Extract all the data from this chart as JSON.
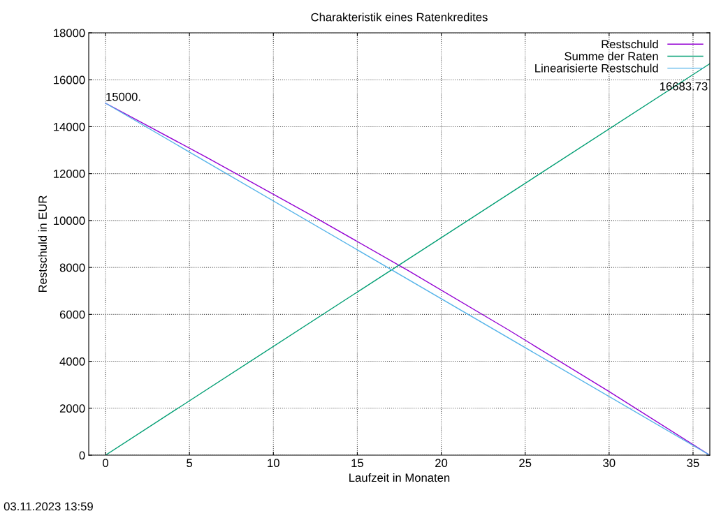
{
  "chart_data": {
    "type": "line",
    "title": "Charakteristik eines Ratenkredites",
    "xlabel": "Laufzeit in Monaten",
    "ylabel": "Restschuld in EUR",
    "series": [
      {
        "name": "Restschuld",
        "color": "#9400d3",
        "x": [
          0,
          6,
          12,
          18,
          24,
          30,
          36
        ],
        "values": [
          15000,
          12700,
          10330,
          7880,
          5340,
          2710,
          0
        ]
      },
      {
        "name": "Summe der Raten",
        "color": "#009e73",
        "x": [
          0,
          36
        ],
        "values": [
          0,
          16683.73
        ]
      },
      {
        "name": "Linearisierte Restschuld",
        "color": "#56b4e9",
        "x": [
          0,
          36
        ],
        "values": [
          15000,
          0
        ]
      }
    ],
    "xlim": [
      -1,
      36
    ],
    "xticks": [
      0,
      5,
      10,
      15,
      20,
      25,
      30,
      35
    ],
    "ylim": [
      0,
      18000
    ],
    "yticks": [
      0,
      2000,
      4000,
      6000,
      8000,
      10000,
      12000,
      14000,
      16000,
      18000
    ],
    "grid": true,
    "legend": "top right",
    "marker": "none",
    "line_style": "solid",
    "annotations": [
      {
        "text": "15000.",
        "x": 0,
        "y": 15000
      },
      {
        "text": "16683.73",
        "x": 36,
        "y": 16683.73
      },
      "03.11.2023 13:59"
    ]
  }
}
